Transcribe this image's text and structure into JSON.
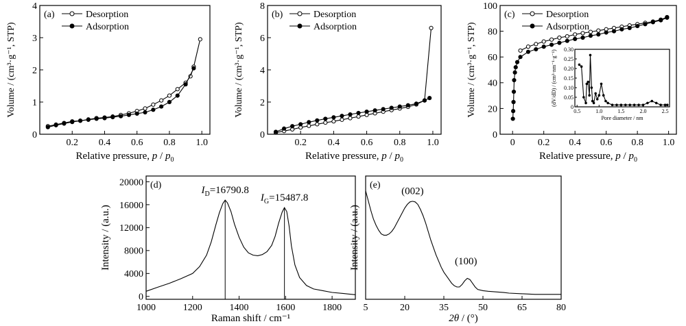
{
  "chart_data": [
    {
      "id": "a",
      "type": "line",
      "panel_label": "(a)",
      "xlabel_main": "Relative pressure, ",
      "xlabel_var": "p",
      "xlabel_sep": " / ",
      "xlabel_var2": "p",
      "xlabel_sub": "0",
      "ylabel": "Volume / (cm³·g⁻¹, STP)",
      "xlim": [
        0,
        1.05
      ],
      "ylim": [
        0,
        4
      ],
      "xticks": [
        "0.2",
        "0.4",
        "0.6",
        "0.8",
        "1.0"
      ],
      "xtick_values": [
        0.2,
        0.4,
        0.6,
        0.8,
        1.0
      ],
      "yticks": [
        "0",
        "1",
        "2",
        "3",
        "4"
      ],
      "ytick_values": [
        0,
        1,
        2,
        3,
        4
      ],
      "legend_position": "top-left",
      "series": [
        {
          "name": "Desorption",
          "marker": "open-circle",
          "x": [
            0.05,
            0.1,
            0.15,
            0.2,
            0.25,
            0.3,
            0.35,
            0.4,
            0.45,
            0.5,
            0.55,
            0.6,
            0.65,
            0.7,
            0.75,
            0.8,
            0.85,
            0.9,
            0.93,
            0.95,
            0.99
          ],
          "y": [
            0.25,
            0.3,
            0.35,
            0.4,
            0.42,
            0.46,
            0.5,
            0.52,
            0.55,
            0.6,
            0.65,
            0.72,
            0.8,
            0.92,
            1.05,
            1.2,
            1.4,
            1.6,
            1.8,
            2.1,
            2.95
          ]
        },
        {
          "name": "Adsorption",
          "marker": "filled-circle",
          "x": [
            0.05,
            0.1,
            0.15,
            0.2,
            0.25,
            0.3,
            0.35,
            0.4,
            0.45,
            0.5,
            0.55,
            0.6,
            0.65,
            0.7,
            0.75,
            0.8,
            0.85,
            0.9,
            0.95
          ],
          "y": [
            0.22,
            0.28,
            0.33,
            0.38,
            0.42,
            0.45,
            0.48,
            0.5,
            0.53,
            0.56,
            0.6,
            0.64,
            0.68,
            0.76,
            0.86,
            1.0,
            1.2,
            1.55,
            2.05
          ]
        }
      ]
    },
    {
      "id": "b",
      "type": "line",
      "panel_label": "(b)",
      "xlabel_main": "Relative pressure, ",
      "xlabel_var": "p",
      "xlabel_sep": " / ",
      "xlabel_var2": "p",
      "xlabel_sub": "0",
      "ylabel": "Volume / (cm³·g⁻¹, STP)",
      "xlim": [
        0,
        1.05
      ],
      "ylim": [
        0,
        8
      ],
      "xticks": [
        "0.2",
        "0.4",
        "0.6",
        "0.8",
        "1.0"
      ],
      "xtick_values": [
        0.2,
        0.4,
        0.6,
        0.8,
        1.0
      ],
      "yticks": [
        "0",
        "2",
        "4",
        "6",
        "8"
      ],
      "ytick_values": [
        0,
        2,
        4,
        6,
        8
      ],
      "legend_position": "top-left",
      "series": [
        {
          "name": "Desorption",
          "marker": "open-circle",
          "x": [
            0.05,
            0.1,
            0.15,
            0.2,
            0.25,
            0.3,
            0.35,
            0.4,
            0.45,
            0.5,
            0.55,
            0.6,
            0.65,
            0.7,
            0.75,
            0.8,
            0.85,
            0.9,
            0.95,
            0.99
          ],
          "y": [
            0.1,
            0.2,
            0.3,
            0.42,
            0.52,
            0.62,
            0.72,
            0.8,
            0.9,
            1.0,
            1.1,
            1.2,
            1.3,
            1.4,
            1.5,
            1.6,
            1.7,
            1.85,
            2.1,
            6.6
          ]
        },
        {
          "name": "Adsorption",
          "marker": "filled-circle",
          "x": [
            0.05,
            0.1,
            0.15,
            0.2,
            0.25,
            0.3,
            0.35,
            0.4,
            0.45,
            0.5,
            0.55,
            0.6,
            0.65,
            0.7,
            0.75,
            0.8,
            0.85,
            0.9,
            0.95,
            0.98
          ],
          "y": [
            0.15,
            0.35,
            0.5,
            0.62,
            0.75,
            0.86,
            0.96,
            1.05,
            1.14,
            1.23,
            1.32,
            1.4,
            1.48,
            1.56,
            1.64,
            1.72,
            1.8,
            1.9,
            2.1,
            2.25
          ]
        }
      ]
    },
    {
      "id": "c",
      "type": "line",
      "panel_label": "(c)",
      "xlabel_main": "Relative pressure, ",
      "xlabel_var": "p",
      "xlabel_sep": " / ",
      "xlabel_var2": "p",
      "xlabel_sub": "0",
      "ylabel": "Volume / (cm³·g⁻¹, STP)",
      "xlim": [
        -0.08,
        1.05
      ],
      "ylim": [
        0,
        100
      ],
      "xticks": [
        "0",
        "0.2",
        "0.4",
        "0.6",
        "0.8",
        "1.0"
      ],
      "xtick_values": [
        0,
        0.2,
        0.4,
        0.6,
        0.8,
        1.0
      ],
      "yticks": [
        "0",
        "20",
        "40",
        "60",
        "80",
        "100"
      ],
      "ytick_values": [
        0,
        20,
        40,
        60,
        80,
        100
      ],
      "legend_position": "top-left",
      "series": [
        {
          "name": "Desorption",
          "marker": "open-circle",
          "x": [
            0.05,
            0.1,
            0.15,
            0.2,
            0.25,
            0.3,
            0.35,
            0.4,
            0.45,
            0.5,
            0.55,
            0.6,
            0.65,
            0.7,
            0.75,
            0.8,
            0.85,
            0.9,
            0.95,
            0.99
          ],
          "y": [
            65,
            68,
            70,
            72,
            73.5,
            75,
            76,
            77.5,
            78.5,
            79.5,
            80.5,
            81.5,
            82.5,
            83.5,
            84.5,
            85.5,
            86.5,
            87.5,
            89,
            91
          ]
        },
        {
          "name": "Adsorption",
          "marker": "filled-circle",
          "x": [
            0.002,
            0.004,
            0.006,
            0.008,
            0.01,
            0.015,
            0.02,
            0.03,
            0.05,
            0.1,
            0.15,
            0.2,
            0.25,
            0.3,
            0.35,
            0.4,
            0.45,
            0.5,
            0.55,
            0.6,
            0.65,
            0.7,
            0.75,
            0.8,
            0.85,
            0.9,
            0.95,
            0.99
          ],
          "y": [
            12,
            18,
            25,
            33,
            42,
            48,
            52,
            56,
            60,
            64,
            66,
            68,
            69.5,
            71,
            72.5,
            74,
            75,
            76.5,
            77.5,
            79,
            80,
            81.5,
            82.5,
            84,
            85.5,
            87,
            88.5,
            90.5
          ]
        }
      ],
      "inset": {
        "xlabel": "Pore diameter / nm",
        "ylabel": "(dV/dD) / (cm³·nm⁻¹·g⁻¹)",
        "xlim": [
          0.45,
          2.6
        ],
        "ylim": [
          0,
          0.3
        ],
        "xticks": [
          "0.5",
          "1.0",
          "1.5",
          "2.0",
          "2.5"
        ],
        "xtick_values": [
          0.5,
          1.0,
          1.5,
          2.0,
          2.5
        ],
        "yticks": [
          "0",
          "0.05",
          "0.10",
          "0.15",
          "0.20",
          "0.25",
          "0.30"
        ],
        "ytick_values": [
          0,
          0.05,
          0.1,
          0.15,
          0.2,
          0.25,
          0.3
        ],
        "x": [
          0.55,
          0.6,
          0.65,
          0.7,
          0.72,
          0.75,
          0.78,
          0.8,
          0.83,
          0.85,
          0.88,
          0.92,
          0.96,
          1.0,
          1.05,
          1.1,
          1.15,
          1.2,
          1.3,
          1.4,
          1.5,
          1.6,
          1.7,
          1.8,
          1.9,
          2.0,
          2.1,
          2.2,
          2.3,
          2.4,
          2.5,
          2.55
        ],
        "y": [
          0.22,
          0.21,
          0.05,
          0.02,
          0.12,
          0.13,
          0.06,
          0.27,
          0.1,
          0.03,
          0.02,
          0.07,
          0.04,
          0.06,
          0.12,
          0.06,
          0.03,
          0.02,
          0.01,
          0.01,
          0.01,
          0.01,
          0.01,
          0.01,
          0.01,
          0.01,
          0.02,
          0.03,
          0.02,
          0.01,
          0.01,
          0.01
        ]
      }
    },
    {
      "id": "d",
      "type": "line",
      "panel_label": "(d)",
      "xlabel": "Raman shift / cm⁻¹",
      "ylabel": "Intensity / (a.u.)",
      "xlim": [
        1000,
        1900
      ],
      "ylim": [
        -500,
        21000
      ],
      "xticks": [
        "1000",
        "1200",
        "1400",
        "1600",
        "1800"
      ],
      "xtick_values": [
        1000,
        1200,
        1400,
        1600,
        1800
      ],
      "yticks": [
        "0",
        "4000",
        "8000",
        "12000",
        "16000",
        "20000"
      ],
      "ytick_values": [
        0,
        4000,
        8000,
        12000,
        16000,
        20000
      ],
      "annotations": [
        {
          "sym": "I",
          "sub": "D",
          "rest": "=16790.8",
          "x": 1340,
          "y": 16790.8
        },
        {
          "sym": "I",
          "sub": "G",
          "rest": "=15487.8",
          "x": 1595,
          "y": 15487.8
        }
      ],
      "x": [
        1000,
        1050,
        1100,
        1150,
        1200,
        1230,
        1260,
        1280,
        1300,
        1315,
        1330,
        1340,
        1350,
        1365,
        1380,
        1400,
        1420,
        1440,
        1460,
        1480,
        1500,
        1520,
        1540,
        1555,
        1570,
        1585,
        1595,
        1605,
        1615,
        1625,
        1640,
        1660,
        1690,
        1720,
        1760,
        1800,
        1850,
        1900
      ],
      "y": [
        900,
        1600,
        2300,
        3100,
        4000,
        5200,
        7200,
        9500,
        12500,
        14600,
        16200,
        16790.8,
        16300,
        14800,
        12600,
        10300,
        8600,
        7600,
        7200,
        7100,
        7300,
        7800,
        8900,
        10500,
        12800,
        14700,
        15487.8,
        14800,
        12300,
        8800,
        5500,
        3300,
        1900,
        1300,
        1000,
        700,
        500,
        300
      ]
    },
    {
      "id": "e",
      "type": "line",
      "panel_label": "(e)",
      "xlabel_var": "2θ",
      "xlabel_rest": " / (°)",
      "ylabel": "Intensity / (a.u.)",
      "xlim": [
        5,
        80
      ],
      "ylim": [
        0,
        1
      ],
      "xticks": [
        "5",
        "20",
        "35",
        "50",
        "65",
        "80"
      ],
      "xtick_values": [
        5,
        20,
        35,
        50,
        65,
        80
      ],
      "peak_labels": [
        {
          "text": "(002)",
          "x": 23,
          "y": 0.82
        },
        {
          "text": "(100)",
          "x": 43.5,
          "y": 0.25
        }
      ],
      "x": [
        5,
        6,
        7,
        8,
        9,
        10,
        11,
        12,
        13,
        14,
        15,
        16,
        17,
        18,
        19,
        20,
        21,
        22,
        23,
        24,
        25,
        26,
        27,
        28,
        29,
        30,
        31,
        32,
        33,
        34,
        35,
        36,
        37,
        38,
        39,
        40,
        41,
        42,
        43,
        44,
        45,
        46,
        47,
        48,
        50,
        52,
        55,
        58,
        60,
        65,
        70,
        75,
        80
      ],
      "y": [
        0.88,
        0.8,
        0.72,
        0.65,
        0.6,
        0.56,
        0.53,
        0.52,
        0.52,
        0.53,
        0.55,
        0.58,
        0.62,
        0.66,
        0.7,
        0.74,
        0.77,
        0.79,
        0.795,
        0.79,
        0.77,
        0.73,
        0.68,
        0.62,
        0.55,
        0.48,
        0.42,
        0.36,
        0.31,
        0.26,
        0.22,
        0.19,
        0.16,
        0.13,
        0.11,
        0.1,
        0.1,
        0.12,
        0.15,
        0.17,
        0.16,
        0.13,
        0.1,
        0.08,
        0.07,
        0.065,
        0.06,
        0.055,
        0.05,
        0.045,
        0.04,
        0.04,
        0.04
      ]
    }
  ]
}
